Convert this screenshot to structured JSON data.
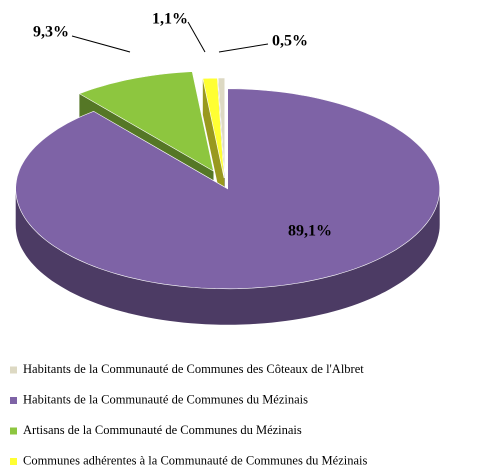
{
  "chart_data": {
    "type": "pie",
    "categories": [
      "Habitants de la Communauté de Communes des Côteaux de l'Albret",
      "Habitants de la Communauté de Communes du Mézinais",
      "Artisans de la Communauté de Communes du Mézinais",
      "Communes adhérentes à la Communauté de Communes du Mézinais"
    ],
    "values": [
      0.5,
      89.1,
      9.3,
      1.1
    ],
    "value_labels": [
      "0,5%",
      "89,1%",
      "9,3%",
      "1,1%"
    ],
    "colors": [
      "#ddd9c3",
      "#7e63a6",
      "#8dc63f",
      "#ffff33"
    ],
    "legend": "bottom"
  }
}
